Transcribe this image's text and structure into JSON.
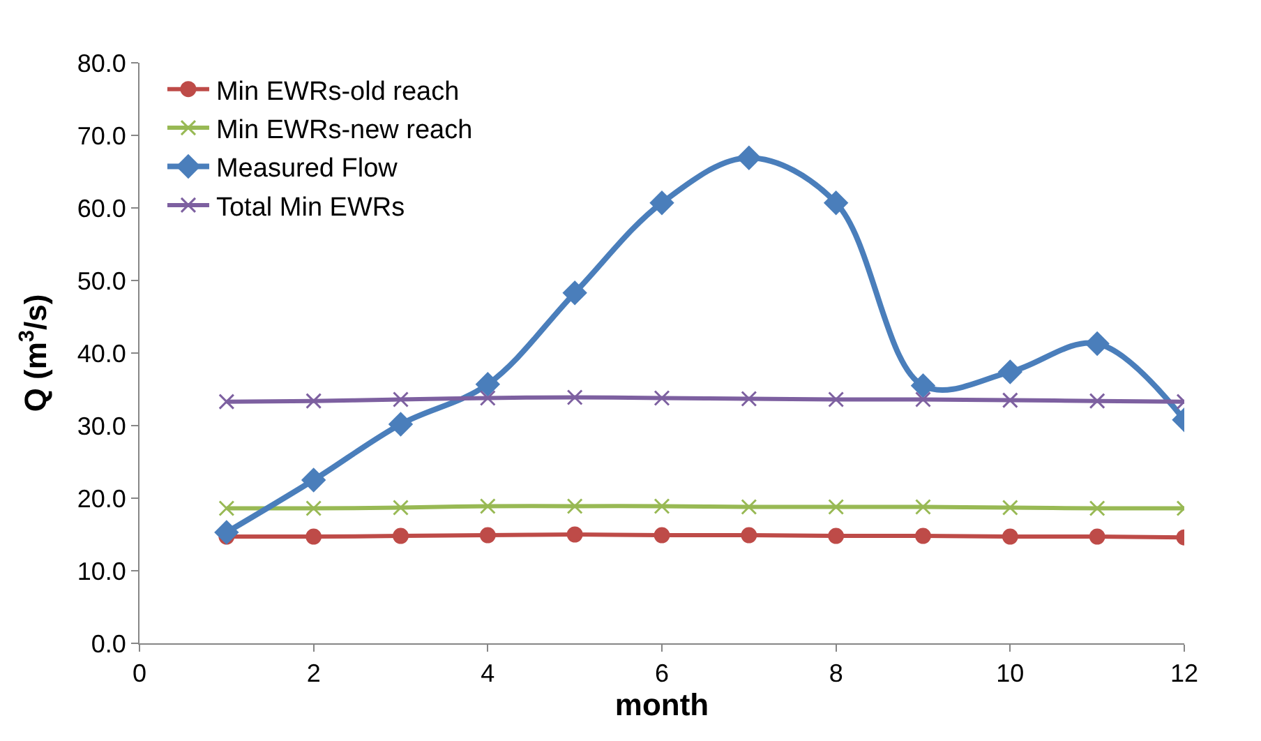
{
  "chart_data": {
    "type": "line",
    "xlabel": "month",
    "ylabel": "Q (m$^{3}$/s)",
    "x": [
      1,
      2,
      3,
      4,
      5,
      6,
      7,
      8,
      9,
      10,
      11,
      12
    ],
    "series": [
      {
        "name": "Min EWRs-old reach",
        "color": "#be4b48",
        "marker": "circle",
        "values": [
          14.7,
          14.7,
          14.8,
          14.9,
          15.0,
          14.9,
          14.9,
          14.8,
          14.8,
          14.7,
          14.7,
          14.6
        ]
      },
      {
        "name": "Min EWRs-new reach",
        "color": "#98b954",
        "marker": "cross",
        "values": [
          18.6,
          18.6,
          18.7,
          18.9,
          18.9,
          18.9,
          18.8,
          18.8,
          18.8,
          18.7,
          18.6,
          18.6
        ]
      },
      {
        "name": "Measured Flow",
        "color": "#4a7ebb",
        "marker": "diamond",
        "values": [
          15.3,
          22.5,
          30.2,
          35.7,
          48.3,
          60.7,
          66.9,
          60.7,
          35.5,
          37.4,
          41.3,
          30.8
        ]
      },
      {
        "name": "Total Min EWRs",
        "color": "#7d60a0",
        "marker": "cross",
        "values": [
          33.3,
          33.4,
          33.6,
          33.8,
          33.9,
          33.8,
          33.7,
          33.6,
          33.6,
          33.5,
          33.4,
          33.3
        ]
      }
    ],
    "xlim": [
      0,
      12
    ],
    "xticks": [
      0,
      2,
      4,
      6,
      8,
      10,
      12
    ],
    "ylim": [
      0,
      80
    ],
    "yticks": [
      {
        "value": 0,
        "label": "0.0"
      },
      {
        "value": 10,
        "label": "10.0"
      },
      {
        "value": 20,
        "label": "20.0"
      },
      {
        "value": 30,
        "label": "30.0"
      },
      {
        "value": 40,
        "label": "40.0"
      },
      {
        "value": 50,
        "label": "50.0"
      },
      {
        "value": 60,
        "label": "60.0"
      },
      {
        "value": 70,
        "label": "70.0"
      },
      {
        "value": 80,
        "label": "80.0"
      }
    ],
    "legend": "top left"
  }
}
